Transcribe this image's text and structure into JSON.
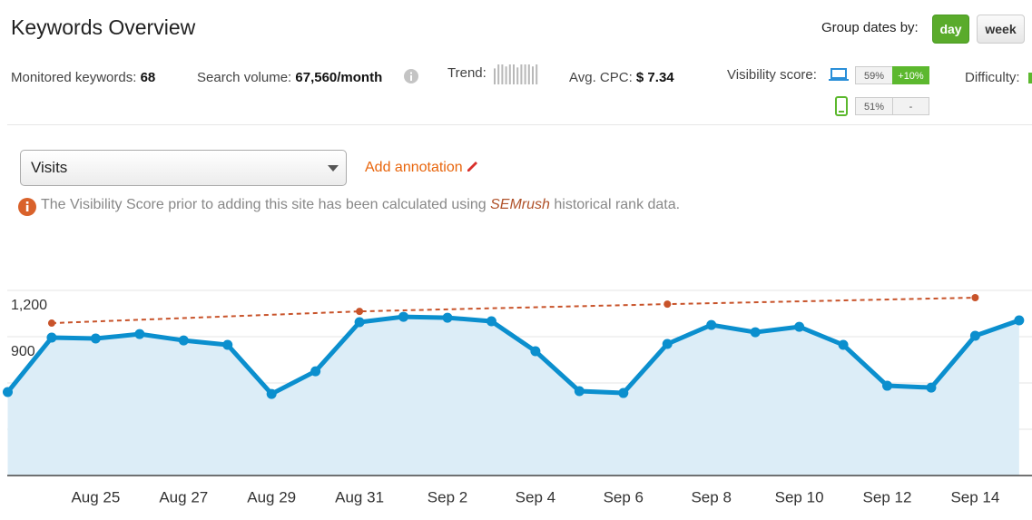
{
  "header": {
    "title": "Keywords Overview",
    "group_label": "Group dates by:",
    "group_options": [
      "day",
      "week"
    ],
    "active_option": "day"
  },
  "stats": [
    {
      "label": "Monitored keywords:",
      "value": "68"
    },
    {
      "label": "Search volume:",
      "value": "67,560/month"
    },
    {
      "label": "Trend:",
      "bars": [
        16,
        20,
        20,
        18,
        20,
        20,
        17,
        20,
        20,
        20,
        18,
        20
      ]
    },
    {
      "label": "Avg. CPC:",
      "value": "$ 7.34"
    }
  ],
  "visibility": {
    "label": "Visibility score:",
    "desktop": {
      "score": "59%",
      "change": "+10%"
    },
    "mobile": {
      "score": "51%",
      "change": "-"
    }
  },
  "difficulty": {
    "label": "Difficulty:"
  },
  "controls": {
    "metric": "Visits",
    "annotation": "Add annotation"
  },
  "notice": {
    "before": "The Visibility Score prior to adding this site has been calculated using",
    "link": "SEMrush",
    "after": "historical rank data."
  },
  "chart_data": {
    "type": "area",
    "categories": [
      null,
      null,
      "Aug 25",
      null,
      "Aug 27",
      null,
      "Aug 29",
      null,
      "Aug 31",
      null,
      "Sep 2",
      null,
      "Sep 4",
      null,
      "Sep 6",
      null,
      "Sep 8",
      null,
      "Sep 10",
      null,
      "Sep 12",
      null,
      "Sep 14",
      null
    ],
    "series": [
      {
        "color": "#0b8fce",
        "fill": "#dcedf7",
        "values": [
          541,
          894,
          888,
          917,
          876,
          847,
          529,
          676,
          994,
          1029,
          1023,
          1000,
          806,
          547,
          535,
          853,
          976,
          929,
          964,
          847,
          582,
          570,
          906,
          1006
        ]
      },
      {
        "color": "#c8532a",
        "dashed": true,
        "x": [
          1,
          8,
          15,
          22
        ],
        "values": [
          988,
          1064,
          1111,
          1153
        ]
      }
    ],
    "ylim": [
      0,
      1300
    ],
    "yticks": [
      {
        "value": 1200,
        "label": "1,200"
      },
      900,
      600,
      300
    ],
    "grid": true
  }
}
